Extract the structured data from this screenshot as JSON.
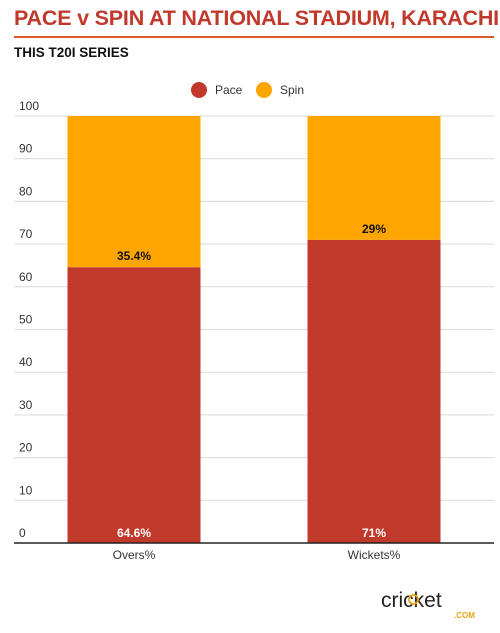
{
  "header": {
    "title": "PACE v SPIN AT NATIONAL STADIUM, KARACHI",
    "subtitle": "THIS T20I SERIES"
  },
  "colors": {
    "pace": "#c0392b",
    "spin": "#ffa500",
    "title": "#c0392b",
    "brand_ring": "#e8a317"
  },
  "brand": {
    "logo_text": "cricket",
    "logo_sub": ".COM"
  },
  "chart_data": {
    "type": "bar",
    "stacked": true,
    "categories": [
      "Overs%",
      "Wickets%"
    ],
    "series": [
      {
        "name": "Pace",
        "values": [
          64.6,
          71
        ],
        "labels": [
          "64.6%",
          "71%"
        ],
        "color": "#c0392b"
      },
      {
        "name": "Spin",
        "values": [
          35.4,
          29
        ],
        "labels": [
          "35.4%",
          "29%"
        ],
        "color": "#ffa500"
      }
    ],
    "ylim": [
      0,
      100
    ],
    "yticks": [
      0,
      10,
      20,
      30,
      40,
      50,
      60,
      70,
      80,
      90,
      100
    ],
    "grid": true,
    "legend": "top-center"
  }
}
